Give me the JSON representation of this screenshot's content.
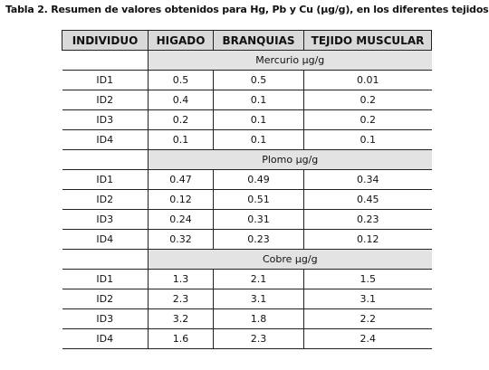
{
  "title": "Tabla 2. Resumen de valores obtenidos para Hg, Pb y Cu (µg/g), en los diferentes tejidos",
  "table": {
    "header": [
      "INDIVIDUO",
      "HIGADO",
      "BRANQUIAS",
      "TEJIDO MUSCULAR"
    ],
    "sections": [
      {
        "label": "Mercurio µg/g",
        "rows": [
          [
            "ID1",
            "0.5",
            "0.5",
            "0.01"
          ],
          [
            "ID2",
            "0.4",
            "0.1",
            "0.2"
          ],
          [
            "ID3",
            "0.2",
            "0.1",
            "0.2"
          ],
          [
            "ID4",
            "0.1",
            "0.1",
            "0.1"
          ]
        ]
      },
      {
        "label": "Plomo µg/g",
        "rows": [
          [
            "ID1",
            "0.47",
            "0.49",
            "0.34"
          ],
          [
            "ID2",
            "0.12",
            "0.51",
            "0.45"
          ],
          [
            "ID3",
            "0.24",
            "0.31",
            "0.23"
          ],
          [
            "ID4",
            "0.32",
            "0.23",
            "0.12"
          ]
        ]
      },
      {
        "label": "Cobre µg/g",
        "rows": [
          [
            "ID1",
            "1.3",
            "2.1",
            "1.5"
          ],
          [
            "ID2",
            "2.3",
            "3.1",
            "3.1"
          ],
          [
            "ID3",
            "3.2",
            "1.8",
            "2.2"
          ],
          [
            "ID4",
            "1.6",
            "2.3",
            "2.4"
          ]
        ]
      }
    ]
  }
}
